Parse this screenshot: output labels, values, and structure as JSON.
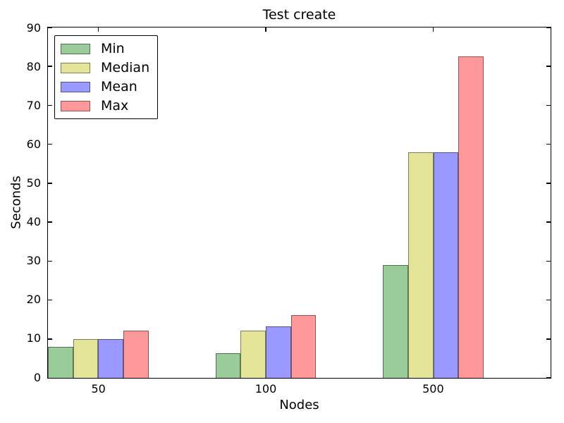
{
  "figure": {
    "background": "#ffffff",
    "axes_border_color": "#000000"
  },
  "chart_data": {
    "type": "bar",
    "title": "Test create",
    "xlabel": "Nodes",
    "ylabel": "Seconds",
    "categories": [
      "50",
      "100",
      "500"
    ],
    "series": [
      {
        "name": "Min",
        "color": "#99cc99",
        "values": [
          8,
          6.4,
          29
        ]
      },
      {
        "name": "Median",
        "color": "#e5e599",
        "values": [
          10,
          12.1,
          58
        ]
      },
      {
        "name": "Mean",
        "color": "#9999ff",
        "values": [
          10,
          13.3,
          58
        ]
      },
      {
        "name": "Max",
        "color": "#ff9999",
        "values": [
          12.2,
          16.2,
          82.5
        ]
      }
    ],
    "ylim": [
      0,
      90
    ],
    "yticks": [
      0,
      10,
      20,
      30,
      40,
      50,
      60,
      70,
      80,
      90
    ],
    "bar_edge_color": "rgba(0,0,0,0.45)",
    "grid": false,
    "legend": {
      "position": "upper left",
      "entries": [
        "Min",
        "Median",
        "Mean",
        "Max"
      ]
    },
    "layout": {
      "xlim": [
        0,
        3
      ],
      "bar_width_units": 0.15,
      "group_tick_offset_units": 0.3
    }
  }
}
